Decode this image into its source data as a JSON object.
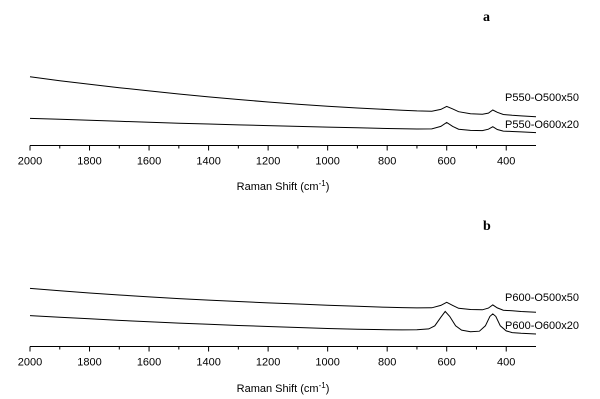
{
  "chart_data": [
    {
      "type": "line",
      "panel_label": "a",
      "xlabel": "Raman Shift (cm",
      "xlabel_sup": "-1",
      "xlabel_tail": ")",
      "x_reversed": true,
      "xlim": [
        2000,
        300
      ],
      "x_ticks": [
        2000,
        1800,
        1600,
        1400,
        1200,
        1000,
        800,
        600,
        400
      ],
      "y_axis_visible": false,
      "grid": false,
      "legend": "inline-right",
      "series": [
        {
          "name": "P550-O500x50",
          "x": [
            2000,
            1900,
            1800,
            1700,
            1600,
            1500,
            1400,
            1300,
            1200,
            1100,
            1000,
            900,
            800,
            750,
            700,
            650,
            620,
            600,
            580,
            560,
            520,
            480,
            460,
            445,
            430,
            410,
            380,
            350,
            300
          ],
          "y": [
            0.3,
            0.272,
            0.246,
            0.221,
            0.198,
            0.176,
            0.155,
            0.136,
            0.118,
            0.102,
            0.088,
            0.075,
            0.064,
            0.059,
            0.054,
            0.052,
            0.065,
            0.086,
            0.068,
            0.048,
            0.034,
            0.03,
            0.038,
            0.06,
            0.044,
            0.028,
            0.022,
            0.018,
            0.012
          ]
        },
        {
          "name": "P550-O600x20",
          "x": [
            2000,
            1900,
            1800,
            1700,
            1600,
            1500,
            1400,
            1300,
            1200,
            1100,
            1000,
            900,
            800,
            750,
            700,
            650,
            620,
            600,
            580,
            560,
            520,
            480,
            460,
            445,
            430,
            410,
            380,
            350,
            300
          ],
          "y": [
            0.0,
            -0.007,
            -0.014,
            -0.021,
            -0.028,
            -0.035,
            -0.041,
            -0.047,
            -0.052,
            -0.058,
            -0.063,
            -0.068,
            -0.073,
            -0.075,
            -0.077,
            -0.076,
            -0.058,
            -0.03,
            -0.058,
            -0.078,
            -0.087,
            -0.088,
            -0.078,
            -0.06,
            -0.08,
            -0.092,
            -0.095,
            -0.098,
            -0.103
          ]
        }
      ]
    },
    {
      "type": "line",
      "panel_label": "b",
      "xlabel": "Raman Shift (cm",
      "xlabel_sup": "-1",
      "xlabel_tail": ")",
      "x_reversed": true,
      "xlim": [
        2000,
        300
      ],
      "x_ticks": [
        2000,
        1800,
        1600,
        1400,
        1200,
        1000,
        800,
        600,
        400
      ],
      "y_axis_visible": false,
      "grid": false,
      "legend": "inline-right",
      "series": [
        {
          "name": "P600-O500x50",
          "x": [
            2000,
            1900,
            1800,
            1700,
            1600,
            1500,
            1400,
            1300,
            1200,
            1100,
            1000,
            900,
            800,
            750,
            700,
            650,
            620,
            600,
            580,
            560,
            520,
            480,
            460,
            445,
            430,
            410,
            380,
            350,
            300
          ],
          "y": [
            0.16,
            0.146,
            0.133,
            0.121,
            0.11,
            0.1,
            0.091,
            0.083,
            0.075,
            0.068,
            0.061,
            0.055,
            0.049,
            0.047,
            0.045,
            0.046,
            0.06,
            0.078,
            0.06,
            0.043,
            0.036,
            0.034,
            0.044,
            0.063,
            0.045,
            0.032,
            0.028,
            0.024,
            0.02
          ]
        },
        {
          "name": "P600-O600x20",
          "x": [
            2000,
            1900,
            1800,
            1700,
            1600,
            1500,
            1400,
            1300,
            1200,
            1100,
            1000,
            900,
            800,
            750,
            700,
            660,
            640,
            620,
            605,
            590,
            570,
            550,
            520,
            490,
            470,
            455,
            445,
            435,
            420,
            400,
            380,
            350,
            300
          ],
          "y": [
            0.0,
            -0.01,
            -0.019,
            -0.028,
            -0.036,
            -0.044,
            -0.051,
            -0.058,
            -0.064,
            -0.07,
            -0.076,
            -0.08,
            -0.083,
            -0.084,
            -0.083,
            -0.078,
            -0.06,
            -0.01,
            0.025,
            -0.005,
            -0.06,
            -0.085,
            -0.095,
            -0.092,
            -0.06,
            -0.005,
            0.01,
            -0.005,
            -0.06,
            -0.09,
            -0.1,
            -0.104,
            -0.108
          ]
        }
      ]
    }
  ]
}
